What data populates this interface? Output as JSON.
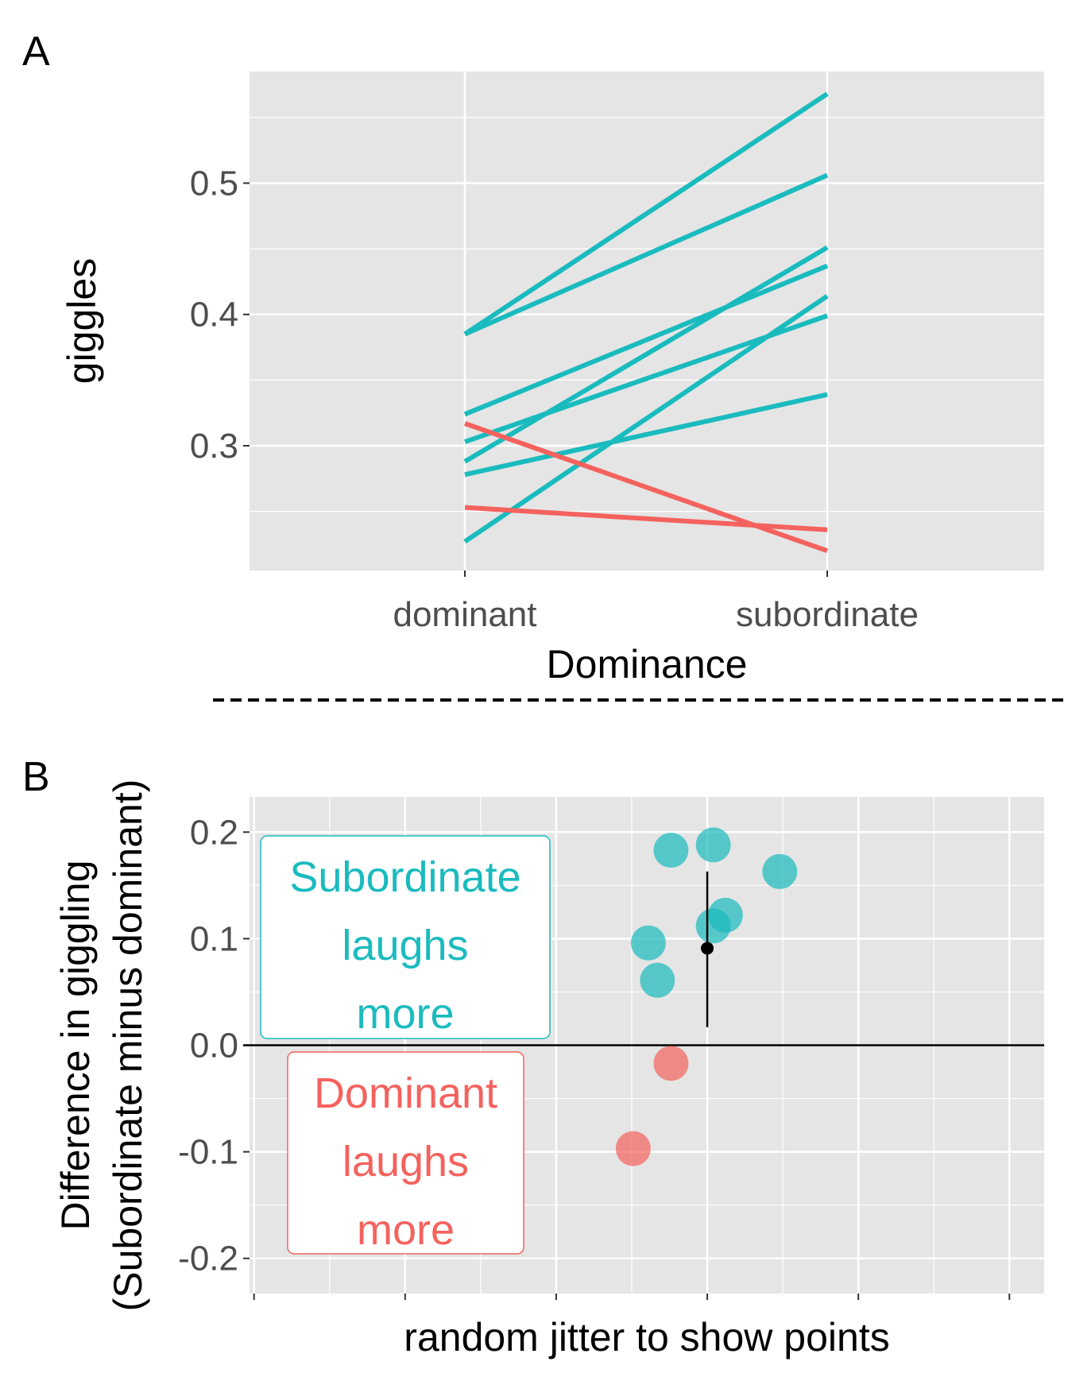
{
  "panel_labels": {
    "a": "A",
    "b": "B"
  },
  "colors": {
    "increase": "#1ABBBE",
    "decrease": "#F4625E",
    "panel_bg": "#E5E5E5",
    "grid": "#FFFFFF"
  },
  "chart_data": [
    {
      "type": "line",
      "panel": "A",
      "xlabel": "Dominance",
      "ylabel": "giggles",
      "categories": [
        "dominant",
        "subordinate"
      ],
      "ylim": [
        0.205,
        0.585
      ],
      "yticks": [
        0.3,
        0.4,
        0.5
      ],
      "ytick_labels": [
        "0.3",
        "0.4",
        "0.5"
      ],
      "grid": true,
      "series": [
        {
          "values": [
            0.385,
            0.568
          ],
          "group": "increase"
        },
        {
          "values": [
            0.385,
            0.506
          ],
          "group": "increase"
        },
        {
          "values": [
            0.324,
            0.437
          ],
          "group": "increase"
        },
        {
          "values": [
            0.288,
            0.451
          ],
          "group": "increase"
        },
        {
          "values": [
            0.303,
            0.399
          ],
          "group": "increase"
        },
        {
          "values": [
            0.227,
            0.414
          ],
          "group": "increase"
        },
        {
          "values": [
            0.278,
            0.339
          ],
          "group": "increase"
        },
        {
          "values": [
            0.317,
            0.22
          ],
          "group": "decrease"
        },
        {
          "values": [
            0.253,
            0.236
          ],
          "group": "decrease"
        }
      ]
    },
    {
      "type": "scatter",
      "panel": "B",
      "xlabel": "random jitter to show points",
      "ylabel": [
        "Difference in giggling",
        "(Subordinate minus dominant)"
      ],
      "ylim": [
        -0.233,
        0.233
      ],
      "xlim": [
        -0.03,
        5.23
      ],
      "yticks": [
        -0.2,
        -0.1,
        0.0,
        0.1,
        0.2
      ],
      "ytick_labels": [
        "-0.2",
        "-0.1",
        "0.0",
        "0.1",
        "0.2"
      ],
      "xticks": [
        0,
        1,
        2,
        3,
        4,
        5
      ],
      "grid": true,
      "points": [
        {
          "x": 2.76,
          "y": 0.183,
          "group": "increase"
        },
        {
          "x": 3.04,
          "y": 0.188,
          "group": "increase"
        },
        {
          "x": 3.48,
          "y": 0.163,
          "group": "increase"
        },
        {
          "x": 3.12,
          "y": 0.122,
          "group": "increase"
        },
        {
          "x": 3.04,
          "y": 0.112,
          "group": "increase"
        },
        {
          "x": 2.61,
          "y": 0.096,
          "group": "increase"
        },
        {
          "x": 2.67,
          "y": 0.061,
          "group": "increase"
        },
        {
          "x": 2.76,
          "y": -0.017,
          "group": "decrease"
        },
        {
          "x": 2.51,
          "y": -0.097,
          "group": "decrease"
        }
      ],
      "summary": {
        "x": 3,
        "mean": 0.091,
        "lower": 0.017,
        "upper": 0.163
      },
      "reference_line": 0,
      "annotations": [
        {
          "lines": [
            "Subordinate",
            "laughs",
            "more"
          ],
          "group": "increase"
        },
        {
          "lines": [
            "Dominant",
            "laughs",
            "more"
          ],
          "group": "decrease"
        }
      ]
    }
  ]
}
